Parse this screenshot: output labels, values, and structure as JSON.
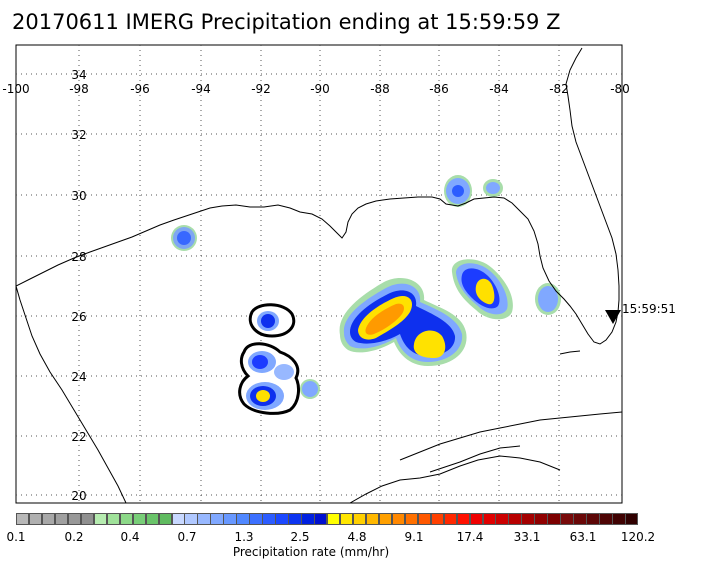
{
  "title": "20170611 IMERG Precipitation ending at 15:59:59 Z",
  "map": {
    "lon_ticks": [
      "-100",
      "-98",
      "-96",
      "-94",
      "-92",
      "-90",
      "-88",
      "-86",
      "-84",
      "-82",
      "-80"
    ],
    "lat_ticks": [
      "34",
      "32",
      "30",
      "28",
      "26",
      "24",
      "22",
      "20"
    ],
    "track_time_label": "15:59:51",
    "grid": true,
    "region": "Gulf of Mexico"
  },
  "colorbar": {
    "labels": [
      "0.1",
      "0.2",
      "0.4",
      "0.7",
      "1.3",
      "2.5",
      "4.8",
      "9.1",
      "17.4",
      "33.1",
      "63.1",
      "120.2"
    ],
    "title": "Precipitation rate (mm/hr)",
    "colors": [
      "#b8b8b8",
      "#b0b0b0",
      "#a8a8a8",
      "#a0a0a0",
      "#989898",
      "#909090",
      "#b6ecb0",
      "#a0e29a",
      "#8cd888",
      "#78ce78",
      "#6ac46a",
      "#60bb60",
      "#c8d8ff",
      "#b0c8ff",
      "#98b8ff",
      "#80a8ff",
      "#6898ff",
      "#5088ff",
      "#3c70ff",
      "#2c5cff",
      "#1c48ff",
      "#0c34f0",
      "#0020e0",
      "#0010d0",
      "#ffff00",
      "#ffe600",
      "#ffd000",
      "#ffb800",
      "#ffa000",
      "#ff8800",
      "#ff7000",
      "#ff5800",
      "#ff4000",
      "#ff2800",
      "#ff1000",
      "#f00000",
      "#e00000",
      "#cc0000",
      "#b80000",
      "#a40000",
      "#900000",
      "#7c0000",
      "#780a0a",
      "#6a0808",
      "#5c0606",
      "#4e0404",
      "#400202",
      "#300000"
    ]
  }
}
